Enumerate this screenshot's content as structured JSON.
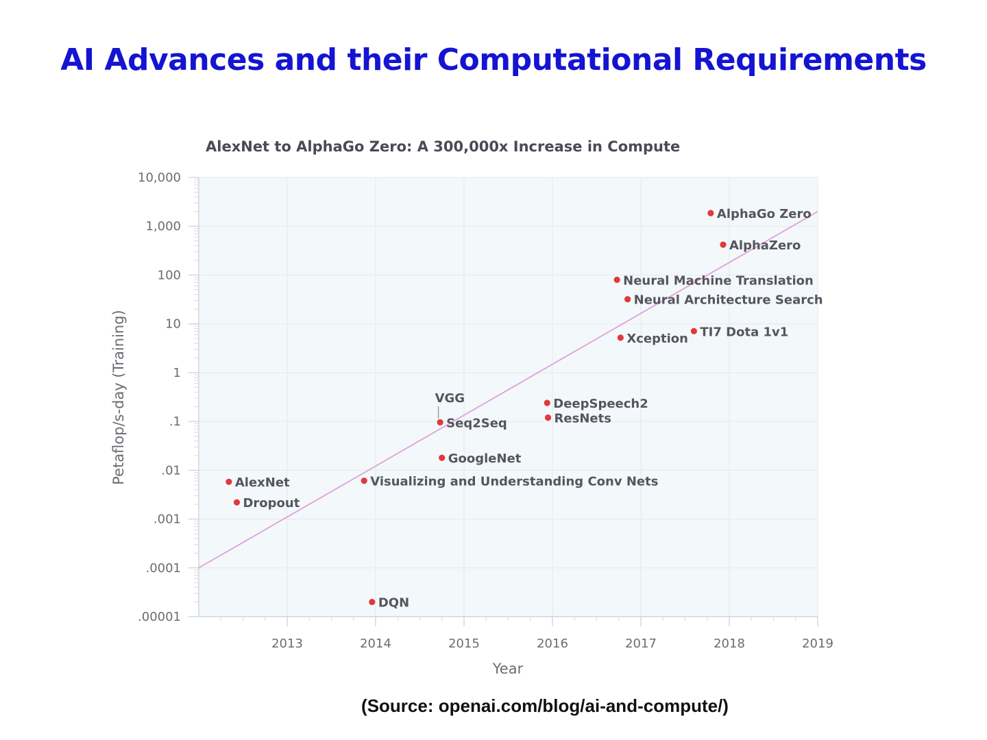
{
  "slide": {
    "title": "AI Advances and their Computational Requirements",
    "source": "(Source: openai.com/blog/ai-and-compute/)"
  },
  "colors": {
    "title": "#1414d2",
    "point": "#e0393e",
    "trend": "#e29fdc",
    "plot_background": "#f3f8fa",
    "grid": "#e6ecef"
  },
  "chart_data": {
    "type": "scatter",
    "title": "AlexNet to AlphaGo Zero: A 300,000x Increase in Compute",
    "xlabel": "Year",
    "ylabel": "Petaflop/s-day (Training)",
    "y_scale": "log",
    "xlim": [
      2012.0,
      2019.0
    ],
    "ylim": [
      1e-05,
      10000
    ],
    "x_ticks": [
      "2013",
      "2014",
      "2015",
      "2016",
      "2017",
      "2018",
      "2019"
    ],
    "x_tick_values": [
      2013,
      2014,
      2015,
      2016,
      2017,
      2018,
      2019
    ],
    "y_ticks": [
      ".00001",
      ".0001",
      ".001",
      ".01",
      ".1",
      "1",
      "10",
      "100",
      "1,000",
      "10,000"
    ],
    "y_tick_values": [
      1e-05,
      0.0001,
      0.001,
      0.01,
      0.1,
      1,
      10,
      100,
      1000,
      10000
    ],
    "grid": true,
    "trend_line": {
      "x": [
        2012.0,
        2019.0
      ],
      "y": [
        0.0001,
        2000
      ]
    },
    "points": [
      {
        "label": "AlexNet",
        "x": 2012.34,
        "y": 0.0058,
        "label_pos": "right"
      },
      {
        "label": "Dropout",
        "x": 2012.43,
        "y": 0.0022,
        "label_pos": "right"
      },
      {
        "label": "DQN",
        "x": 2013.96,
        "y": 2e-05,
        "label_pos": "right"
      },
      {
        "label": "Visualizing and Understanding Conv Nets",
        "x": 2013.87,
        "y": 0.0061,
        "label_pos": "right"
      },
      {
        "label": "Seq2Seq",
        "x": 2014.73,
        "y": 0.096,
        "label_pos": "right"
      },
      {
        "label": "VGG",
        "x": 2014.71,
        "y": 0.101,
        "label_pos": "top"
      },
      {
        "label": "GoogleNet",
        "x": 2014.75,
        "y": 0.018,
        "label_pos": "right"
      },
      {
        "label": "DeepSpeech2",
        "x": 2015.94,
        "y": 0.24,
        "label_pos": "right"
      },
      {
        "label": "ResNets",
        "x": 2015.95,
        "y": 0.12,
        "label_pos": "right"
      },
      {
        "label": "Xception",
        "x": 2016.77,
        "y": 5.2,
        "label_pos": "right"
      },
      {
        "label": "Neural Machine Translation",
        "x": 2016.73,
        "y": 80,
        "label_pos": "right"
      },
      {
        "label": "Neural Architecture Search",
        "x": 2016.85,
        "y": 32,
        "label_pos": "right"
      },
      {
        "label": "TI7 Dota 1v1",
        "x": 2017.6,
        "y": 7.1,
        "label_pos": "right"
      },
      {
        "label": "AlphaGo Zero",
        "x": 2017.79,
        "y": 1860,
        "label_pos": "right"
      },
      {
        "label": "AlphaZero",
        "x": 2017.93,
        "y": 420,
        "label_pos": "right"
      }
    ]
  }
}
